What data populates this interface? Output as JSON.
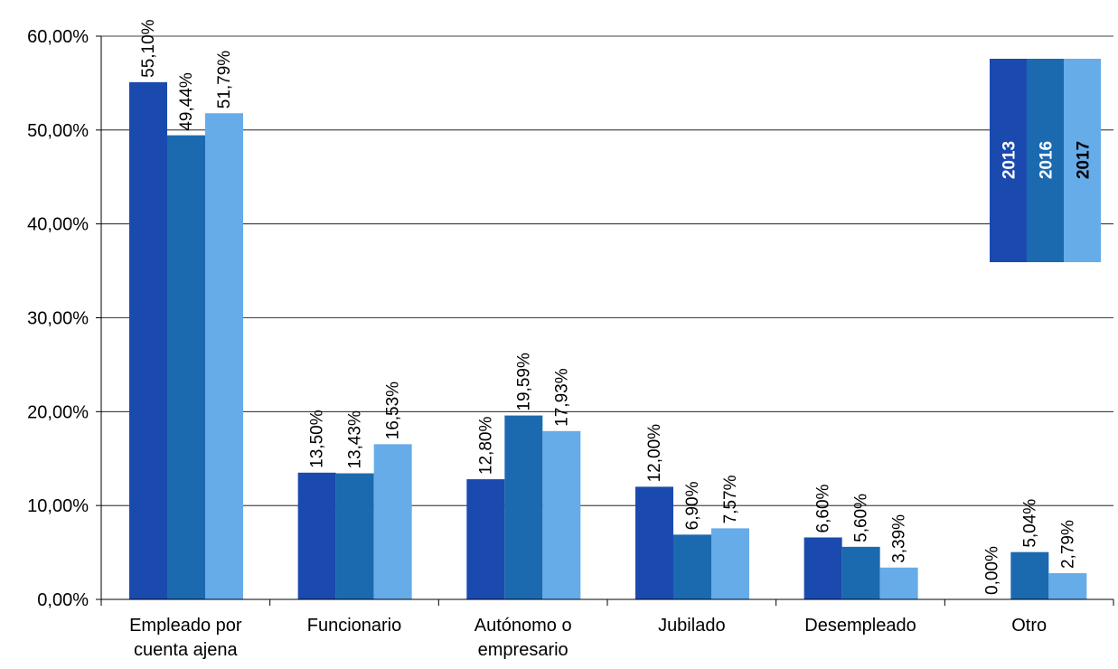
{
  "chart_data": {
    "type": "bar",
    "title": "",
    "xlabel": "",
    "ylabel": "",
    "ylim": [
      0,
      60
    ],
    "yticks": [
      "0,00%",
      "10,00%",
      "20,00%",
      "30,00%",
      "40,00%",
      "50,00%",
      "60,00%"
    ],
    "grid": true,
    "legend_position": "top-right",
    "categories": [
      [
        "Empleado por",
        "cuenta ajena"
      ],
      [
        "Funcionario"
      ],
      [
        "Autónomo o",
        "empresario"
      ],
      [
        "Jubilado"
      ],
      [
        "Desempleado"
      ],
      [
        "Otro"
      ]
    ],
    "series": [
      {
        "name": "2013",
        "color": "#1a4aae",
        "values": [
          55.1,
          13.5,
          12.8,
          12.0,
          6.6,
          0.0
        ],
        "labels": [
          "55,10%",
          "13,50%",
          "12,80%",
          "12,00%",
          "6,60%",
          "0,00%"
        ]
      },
      {
        "name": "2016",
        "color": "#1b6ab0",
        "values": [
          49.44,
          13.43,
          19.59,
          6.9,
          5.6,
          5.04
        ],
        "labels": [
          "49,44%",
          "13,43%",
          "19,59%",
          "6,90%",
          "5,60%",
          "5,04%"
        ]
      },
      {
        "name": "2017",
        "color": "#66ace8",
        "values": [
          51.79,
          16.53,
          17.93,
          7.57,
          3.39,
          2.79
        ],
        "labels": [
          "51,79%",
          "16,53%",
          "17,93%",
          "7,57%",
          "3,39%",
          "2,79%"
        ]
      }
    ],
    "legend_text_colors": [
      "#ffffff",
      "#ffffff",
      "#000000"
    ]
  }
}
